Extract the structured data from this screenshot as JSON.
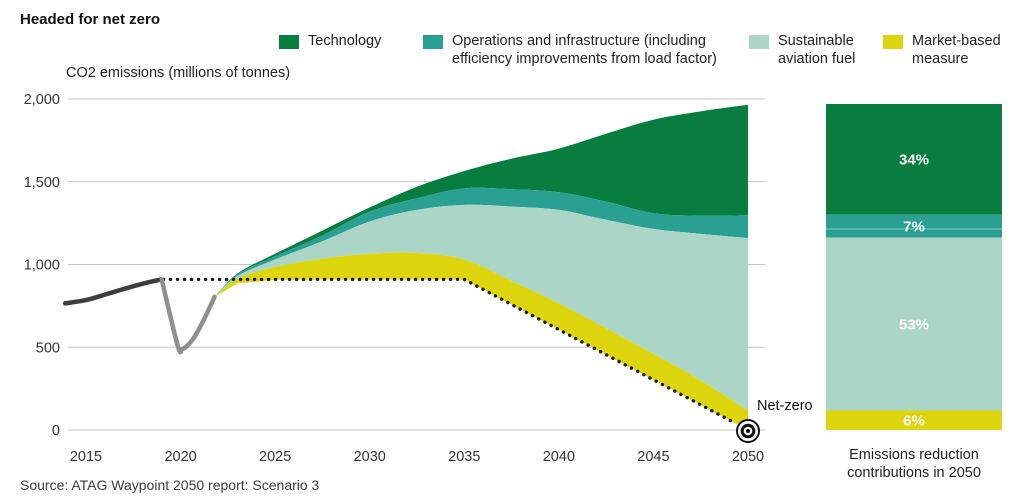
{
  "page_title": "Headed for net zero",
  "source": "Source: ATAG Waypoint 2050 report: Scenario 3",
  "colors": {
    "technology": "#087d3f",
    "operations": "#2aa093",
    "saf": "#abd5c6",
    "market": "#ddd60e",
    "history_dark": "#3d3d3d",
    "history_light": "#8f8f8f",
    "grid": "#c6c6c6",
    "dotted": "#1a1a1a",
    "tick_text": "#333333",
    "bar_label_text": "#ffffff"
  },
  "legend": [
    {
      "label": "Technology",
      "color_key": "technology"
    },
    {
      "label": "Operations and infrastructure (including efficiency improvements from load factor)",
      "color_key": "operations"
    },
    {
      "label": "Sustainable aviation fuel",
      "color_key": "saf"
    },
    {
      "label": "Market-based measure",
      "color_key": "market"
    }
  ],
  "chart_data": [
    {
      "type": "area",
      "title": "Headed for net zero",
      "ylabel": "CO2 emissions (millions of tonnes)",
      "xlabel": "",
      "ylim": [
        0,
        2000
      ],
      "grid": "horizontal",
      "net_zero_label": "Net-zero",
      "y_ticks": [
        {
          "value": 0,
          "label": "0"
        },
        {
          "value": 500,
          "label": "500"
        },
        {
          "value": 1000,
          "label": "1,000"
        },
        {
          "value": 1500,
          "label": "1,500"
        },
        {
          "value": 2000,
          "label": "2,000"
        }
      ],
      "x_ticks": [
        {
          "value": 2015,
          "label": "2015"
        },
        {
          "value": 2020,
          "label": "2020"
        },
        {
          "value": 2025,
          "label": "2025"
        },
        {
          "value": 2030,
          "label": "2030"
        },
        {
          "value": 2035,
          "label": "2035"
        },
        {
          "value": 2040,
          "label": "2040"
        },
        {
          "value": 2045,
          "label": "2045"
        },
        {
          "value": 2050,
          "label": "2050"
        }
      ],
      "history_solid": {
        "name": "Historical emissions",
        "x": [
          2013.9,
          2015,
          2016,
          2017,
          2018,
          2019
        ],
        "y": [
          765,
          785,
          818,
          852,
          884,
          910
        ]
      },
      "history_covid": {
        "name": "Covid dip and recovery",
        "x": [
          2019,
          2019.85,
          2020.1,
          2020.65,
          2021.2,
          2021.8
        ],
        "y": [
          910,
          510,
          489,
          548,
          660,
          805
        ]
      },
      "net_zero_trajectory": {
        "name": "Net-zero trajectory (dotted)",
        "x": [
          2019.1,
          2035,
          2049.35
        ],
        "y": [
          910,
          910,
          40
        ]
      },
      "stack": {
        "years": [
          2021.8,
          2023,
          2025,
          2027.5,
          2030,
          2032.5,
          2035,
          2037.5,
          2040,
          2042.5,
          2045,
          2047.5,
          2050
        ],
        "net_bottom": [
          805,
          885,
          908,
          910,
          910,
          910,
          910,
          758,
          607,
          455,
          303,
          152,
          0
        ],
        "market_top": [
          805,
          915,
          985,
          1035,
          1065,
          1070,
          1030,
          900,
          765,
          615,
          460,
          300,
          118
        ],
        "saf_top": [
          805,
          930,
          1030,
          1140,
          1260,
          1330,
          1360,
          1350,
          1330,
          1270,
          1215,
          1185,
          1159
        ],
        "operations_top": [
          805,
          940,
          1050,
          1175,
          1320,
          1400,
          1460,
          1455,
          1437,
          1380,
          1310,
          1295,
          1297
        ],
        "technology_top": [
          805,
          945,
          1065,
          1205,
          1345,
          1470,
          1565,
          1640,
          1700,
          1790,
          1875,
          1925,
          1965
        ]
      }
    },
    {
      "type": "bar",
      "stacked": true,
      "caption": "Emissions reduction contributions in 2050",
      "segments": [
        {
          "name": "Technology",
          "pct": 34,
          "label": "34%",
          "color_key": "technology"
        },
        {
          "name": "Operations and infrastructure",
          "pct": 7,
          "label": "7%",
          "color_key": "operations"
        },
        {
          "name": "Sustainable aviation fuel",
          "pct": 53,
          "label": "53%",
          "color_key": "saf"
        },
        {
          "name": "Market-based measure",
          "pct": 6,
          "label": "6%",
          "color_key": "market"
        }
      ]
    }
  ]
}
